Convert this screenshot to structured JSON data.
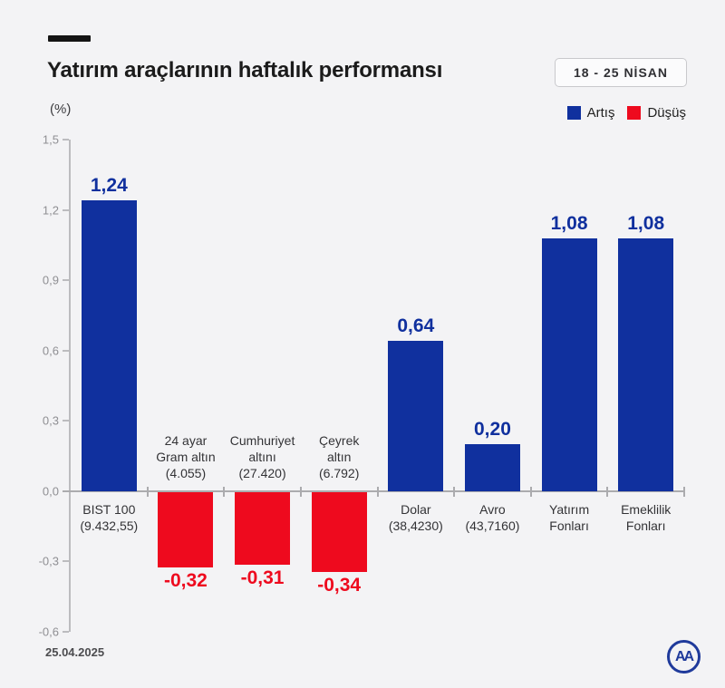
{
  "header": {
    "title": "Yatırım araçlarının haftalık performansı",
    "date_badge": "18 - 25 NİSAN",
    "unit_label": "(%)",
    "legend": [
      {
        "label": "Artış",
        "color": "#10309e"
      },
      {
        "label": "Düşüş",
        "color": "#ee0a1e"
      }
    ]
  },
  "footer": {
    "date": "25.04.2025",
    "agency_logo_text": "AA"
  },
  "chart_data": {
    "type": "bar",
    "title": "Yatırım araçlarının haftalık performansı",
    "subtitle_period": "18 - 25 NİSAN",
    "ylabel": "(%)",
    "ylim": [
      -0.6,
      1.5
    ],
    "ytick_step": 0.3,
    "yticks": [
      {
        "value": 1.5,
        "label": "1,5"
      },
      {
        "value": 1.2,
        "label": "1,2"
      },
      {
        "value": 0.9,
        "label": "0,9"
      },
      {
        "value": 0.6,
        "label": "0,6"
      },
      {
        "value": 0.3,
        "label": "0,3"
      },
      {
        "value": 0.0,
        "label": "0,0"
      },
      {
        "value": -0.3,
        "label": "-0,3"
      },
      {
        "value": -0.6,
        "label": "-0,6"
      }
    ],
    "grid": false,
    "legend_position": "top-right",
    "colors": {
      "positive": "#10309e",
      "negative": "#ee0a1e"
    },
    "categories": [
      {
        "name": "BIST 100",
        "label_lines": [
          "BIST 100",
          "(9.432,55)"
        ],
        "value": 1.24,
        "value_label": "1,24"
      },
      {
        "name": "24 ayar Gram altın",
        "label_lines": [
          "24 ayar",
          "Gram altın",
          "(4.055)"
        ],
        "value": -0.32,
        "value_label": "-0,32"
      },
      {
        "name": "Cumhuriyet altını",
        "label_lines": [
          "Cumhuriyet",
          "altını",
          "(27.420)"
        ],
        "value": -0.31,
        "value_label": "-0,31"
      },
      {
        "name": "Çeyrek altın",
        "label_lines": [
          "Çeyrek",
          "altın",
          "(6.792)"
        ],
        "value": -0.34,
        "value_label": "-0,34"
      },
      {
        "name": "Dolar",
        "label_lines": [
          "Dolar",
          "(38,4230)"
        ],
        "value": 0.64,
        "value_label": "0,64"
      },
      {
        "name": "Avro",
        "label_lines": [
          "Avro",
          "(43,7160)"
        ],
        "value": 0.2,
        "value_label": "0,20"
      },
      {
        "name": "Yatırım Fonları",
        "label_lines": [
          "Yatırım",
          "Fonları"
        ],
        "value": 1.08,
        "value_label": "1,08"
      },
      {
        "name": "Emeklilik Fonları",
        "label_lines": [
          "Emeklilik",
          "Fonları"
        ],
        "value": 1.08,
        "value_label": "1,08"
      }
    ]
  }
}
